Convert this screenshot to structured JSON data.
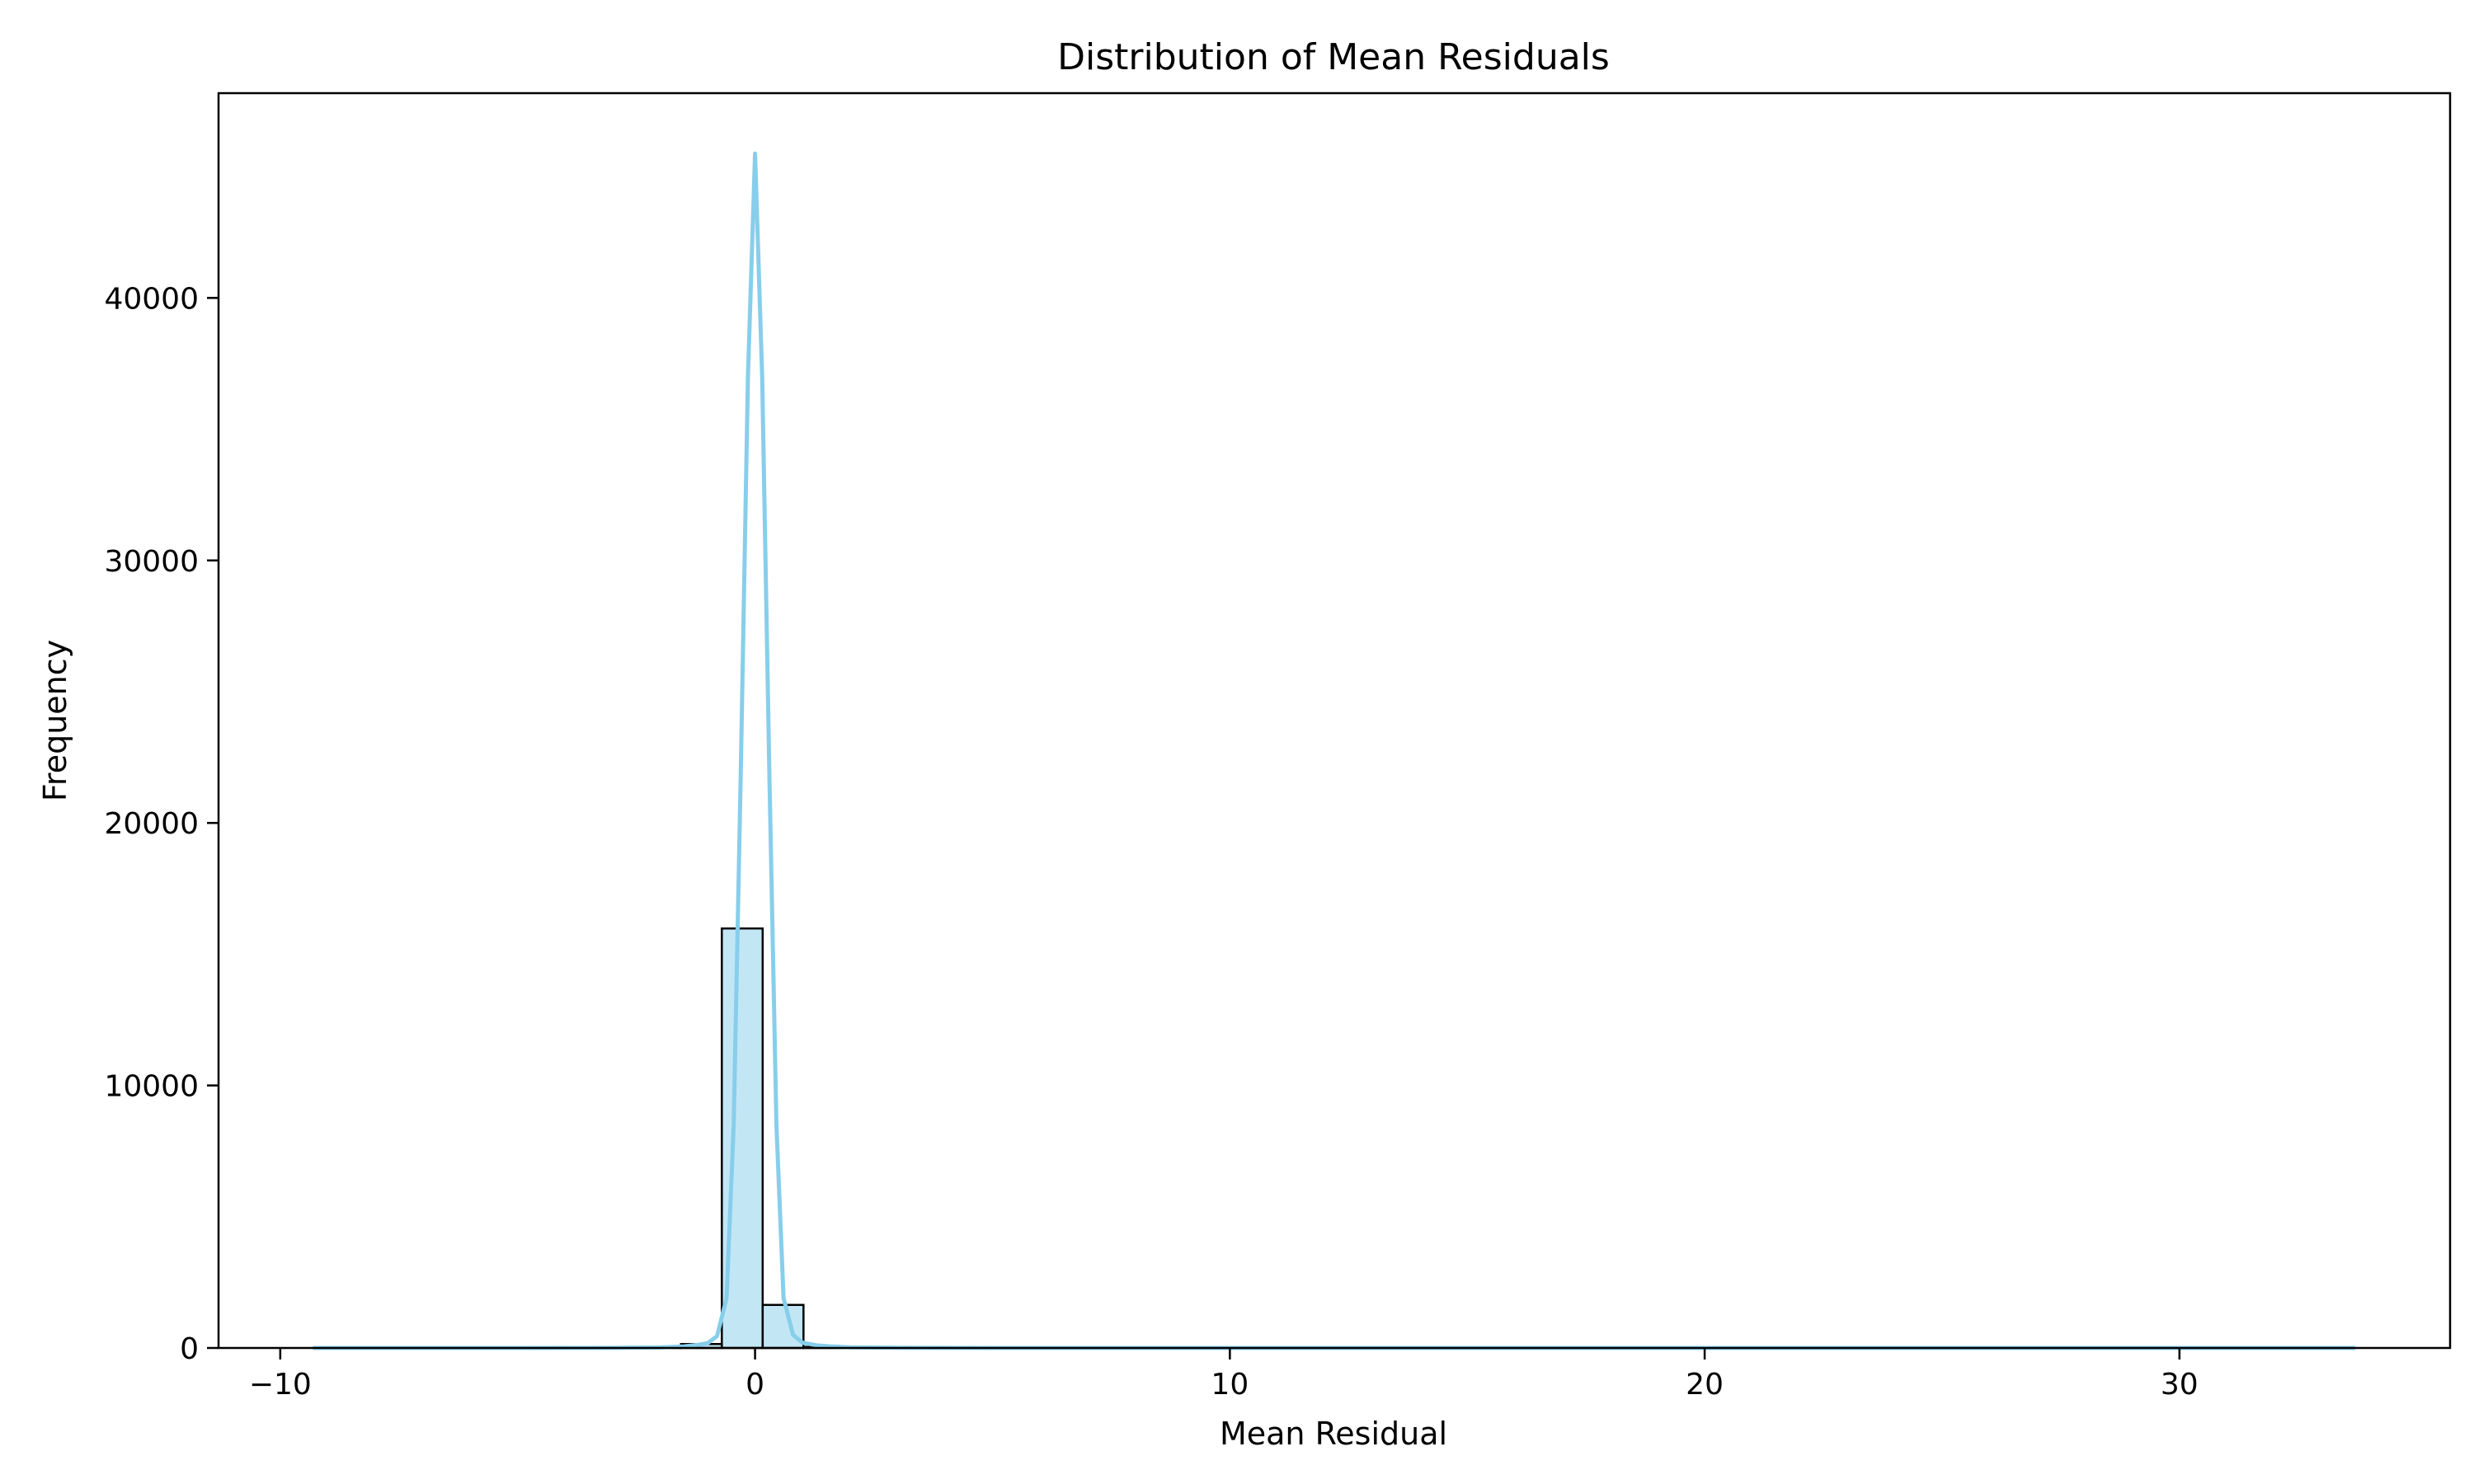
{
  "chart_data": {
    "type": "bar",
    "title": "Distribution of Mean Residuals",
    "xlabel": "Mean Residual",
    "ylabel": "Frequency",
    "xlim": [
      -11.3,
      35.7
    ],
    "ylim": [
      0,
      47800
    ],
    "xticks": [
      -10,
      0,
      10,
      20,
      30
    ],
    "xtick_labels": [
      "−10",
      "0",
      "10",
      "20",
      "30"
    ],
    "yticks": [
      0,
      10000,
      20000,
      30000,
      40000
    ],
    "ytick_labels": [
      "0",
      "10000",
      "20000",
      "30000",
      "40000"
    ],
    "bar_color": "#87ceeb",
    "line_color": "#87ceeb",
    "grid": false,
    "histogram": {
      "bin_edges": [
        -9.3,
        -8.44,
        -7.58,
        -6.72,
        -5.86,
        -5.0,
        -4.14,
        -3.28,
        -2.42,
        -1.56,
        -0.7,
        0.16,
        1.02,
        1.88,
        2.74,
        3.6,
        4.46,
        5.32,
        6.18,
        7.04,
        7.9,
        8.76,
        9.62,
        10.48,
        11.34,
        12.2,
        13.06,
        13.92,
        14.78,
        15.64,
        16.5,
        17.36,
        18.22,
        19.08,
        19.94,
        20.8,
        21.66,
        22.52,
        23.38,
        24.24,
        25.1,
        25.96,
        26.82,
        27.68,
        28.54,
        29.4,
        30.26,
        31.12,
        31.98,
        32.84,
        33.7
      ],
      "counts": [
        1,
        0,
        0,
        0,
        1,
        2,
        3,
        8,
        20,
        150,
        15980,
        1640,
        40,
        6,
        3,
        2,
        1,
        1,
        0,
        0,
        0,
        0,
        0,
        0,
        0,
        0,
        0,
        0,
        0,
        0,
        0,
        0,
        0,
        0,
        0,
        0,
        0,
        0,
        0,
        0,
        0,
        0,
        0,
        0,
        0,
        0,
        0,
        0,
        0,
        0
      ]
    },
    "kde": {
      "x": [
        -9.3,
        -5.0,
        -3.0,
        -2.0,
        -1.5,
        -1.2,
        -1.0,
        -0.8,
        -0.6,
        -0.45,
        -0.3,
        -0.15,
        0.0,
        0.15,
        0.3,
        0.45,
        0.6,
        0.8,
        1.0,
        1.3,
        1.6,
        2.0,
        3.0,
        5.0,
        10.0,
        20.0,
        33.7
      ],
      "y": [
        0,
        0,
        5,
        20,
        60,
        120,
        180,
        450,
        1900,
        8500,
        22000,
        37000,
        45500,
        37000,
        22000,
        8500,
        1900,
        500,
        200,
        100,
        60,
        25,
        8,
        0,
        0,
        0,
        0
      ]
    }
  }
}
